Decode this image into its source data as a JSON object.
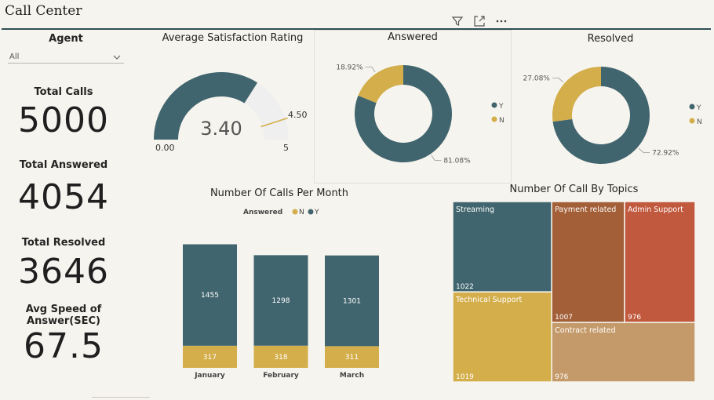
{
  "header": {
    "title": "Call Center"
  },
  "toolbar": {
    "filter_icon": "filter-icon",
    "focus_icon": "focus-mode-icon",
    "more_icon": "more-options-icon"
  },
  "filters": {
    "agent_label": "Agent",
    "agent_value": "All"
  },
  "kpis": {
    "total_calls_label": "Total Calls",
    "total_calls": "5000",
    "total_answered_label": "Total Answered",
    "total_answered": "4054",
    "total_resolved_label": "Total Resolved",
    "total_resolved": "3646",
    "avg_speed_label_1": "Avg Speed of",
    "avg_speed_label_2": "Answer(SEC)",
    "avg_speed": "67.5"
  },
  "colors": {
    "teal": "#41656e",
    "gold": "#d3ae4a",
    "gauge_bg": "#efefef",
    "background": "#f6f4ee"
  },
  "chart_data": [
    {
      "type": "gauge",
      "title": "Average Satisfaction Rating",
      "value": 3.4,
      "value_label": "3.40",
      "min": 0,
      "min_label": "0.00",
      "max": 5,
      "max_label": "5",
      "target": 4.5,
      "target_label": "4.50"
    },
    {
      "type": "pie",
      "title": "Answered",
      "slices": [
        {
          "name": "Y",
          "value": 81.08,
          "label": "81.08%",
          "color": "#41656e"
        },
        {
          "name": "N",
          "value": 18.92,
          "label": "18.92%",
          "color": "#d3ae4a"
        }
      ],
      "legend": "right"
    },
    {
      "type": "pie",
      "title": "Resolved",
      "slices": [
        {
          "name": "Y",
          "value": 72.92,
          "label": "72.92%",
          "color": "#41656e"
        },
        {
          "name": "N",
          "value": 27.08,
          "label": "27.08%",
          "color": "#d3ae4a"
        }
      ],
      "legend": "right"
    },
    {
      "type": "bar",
      "stacked": true,
      "title": "Number Of Calls Per Month",
      "legend_title": "Answered",
      "categories": [
        "January",
        "February",
        "March"
      ],
      "series": [
        {
          "name": "N",
          "values": [
            317,
            318,
            311
          ],
          "color": "#d3ae4a"
        },
        {
          "name": "Y",
          "values": [
            1455,
            1298,
            1301
          ],
          "color": "#41656e"
        }
      ],
      "ylim": [
        0,
        1800
      ]
    },
    {
      "type": "treemap",
      "title": "Number Of Call By Topics",
      "items": [
        {
          "name": "Streaming",
          "value": 1022,
          "color": "#41656e"
        },
        {
          "name": "Technical Support",
          "value": 1019,
          "color": "#d3ae4a"
        },
        {
          "name": "Payment related",
          "value": 1007,
          "color": "#a25f38"
        },
        {
          "name": "Admin Support",
          "value": 976,
          "color": "#c0593d"
        },
        {
          "name": "Contract related",
          "value": 976,
          "color": "#c49a6a"
        }
      ]
    }
  ]
}
